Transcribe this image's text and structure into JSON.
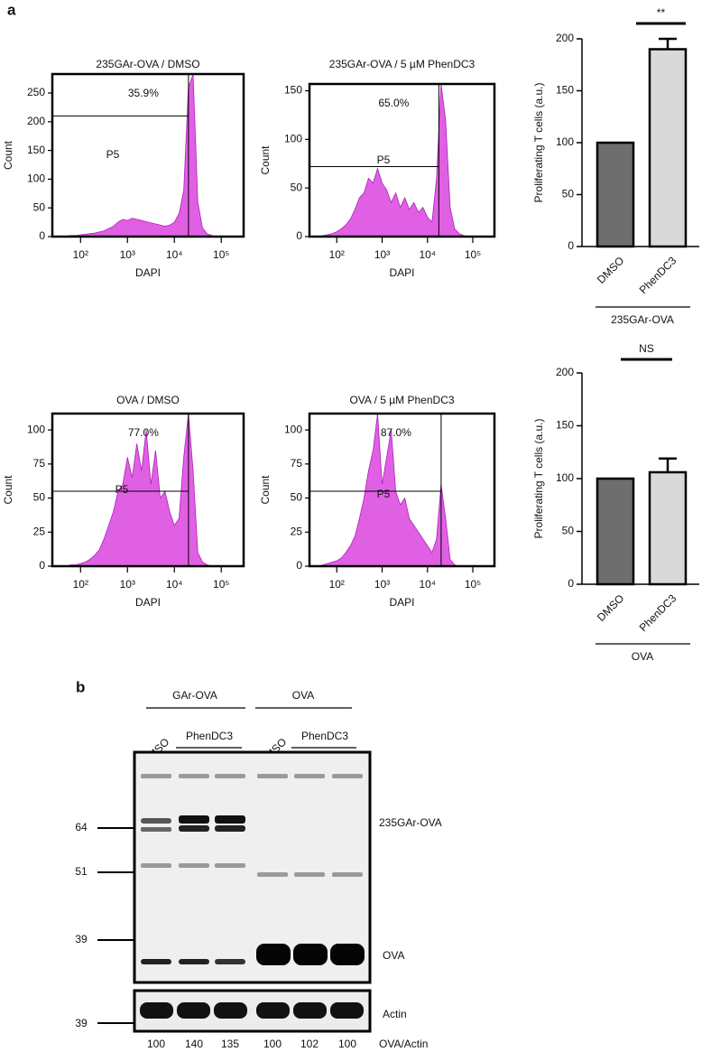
{
  "panel_labels": [
    "a",
    "b"
  ],
  "chart_data": [
    {
      "type": "area",
      "title": "235GAr-OVA / DMSO",
      "xlabel": "DAPI",
      "ylabel": "Count",
      "color": "#e060e4",
      "xscale": "log",
      "x": [
        32,
        40,
        50,
        63,
        79,
        100,
        126,
        158,
        200,
        251,
        316,
        398,
        501,
        631,
        794,
        1000,
        1259,
        1585,
        1995,
        2512,
        3162,
        3981,
        5012,
        6310,
        7943,
        10000,
        12589,
        15849,
        19953,
        25119,
        31623,
        39811,
        50119,
        63096,
        79433,
        100000
      ],
      "values": [
        0,
        0,
        1,
        2,
        2,
        3,
        4,
        5,
        6,
        8,
        10,
        14,
        18,
        25,
        30,
        28,
        32,
        30,
        28,
        26,
        24,
        22,
        20,
        18,
        20,
        25,
        40,
        80,
        260,
        283,
        60,
        15,
        5,
        2,
        0,
        0
      ],
      "xlim": [
        25,
        300000
      ],
      "xticks": [
        {
          "value": 100,
          "label": "10²"
        },
        {
          "value": 1000,
          "label": "10³"
        },
        {
          "value": 10000,
          "label": "10⁴"
        },
        {
          "value": 100000,
          "label": "10⁵"
        }
      ],
      "ylim": [
        0,
        283
      ],
      "yticks": [
        0,
        50,
        100,
        150,
        200,
        250
      ],
      "gate": {
        "x": 20000,
        "y": 210
      },
      "gate_label": "35.9%",
      "region_label": "P5"
    },
    {
      "type": "area",
      "title": "235GAr-OVA / 5 µM PhenDC3",
      "xlabel": "DAPI",
      "ylabel": "Count",
      "color": "#e060e4",
      "xscale": "log",
      "x": [
        32,
        40,
        50,
        63,
        79,
        100,
        126,
        158,
        200,
        251,
        316,
        398,
        501,
        631,
        794,
        1000,
        1259,
        1585,
        1995,
        2512,
        3162,
        3981,
        5012,
        6310,
        7943,
        10000,
        12589,
        15849,
        19953,
        25119,
        31623,
        39811,
        50119,
        63096,
        79433,
        100000
      ],
      "values": [
        0,
        0,
        1,
        2,
        3,
        5,
        8,
        12,
        18,
        28,
        40,
        45,
        60,
        55,
        70,
        55,
        48,
        35,
        45,
        30,
        40,
        28,
        35,
        25,
        30,
        20,
        15,
        60,
        157,
        120,
        30,
        8,
        3,
        1,
        0,
        0
      ],
      "xlim": [
        25,
        300000
      ],
      "xticks": [
        {
          "value": 100,
          "label": "10²"
        },
        {
          "value": 1000,
          "label": "10³"
        },
        {
          "value": 10000,
          "label": "10⁴"
        },
        {
          "value": 100000,
          "label": "10⁵"
        }
      ],
      "ylim": [
        0,
        157
      ],
      "yticks": [
        0,
        50,
        100,
        150
      ],
      "gate": {
        "x": 17800,
        "y": 72
      },
      "gate_label": "65.0%",
      "region_label": "P5"
    },
    {
      "type": "area",
      "title": "OVA / DMSO",
      "xlabel": "DAPI",
      "ylabel": "Count",
      "color": "#e060e4",
      "xscale": "log",
      "x": [
        32,
        40,
        50,
        63,
        79,
        100,
        126,
        158,
        200,
        251,
        316,
        398,
        501,
        631,
        794,
        1000,
        1259,
        1585,
        1995,
        2512,
        3162,
        3981,
        5012,
        6310,
        7943,
        10000,
        12589,
        15849,
        19953,
        25119,
        31623,
        39811,
        50119,
        63096,
        79433,
        100000
      ],
      "values": [
        0,
        0,
        0,
        1,
        1,
        2,
        3,
        5,
        8,
        12,
        20,
        30,
        40,
        55,
        60,
        80,
        65,
        90,
        70,
        100,
        60,
        85,
        50,
        55,
        40,
        30,
        35,
        80,
        112,
        70,
        10,
        3,
        1,
        0,
        0,
        0
      ],
      "xlim": [
        25,
        300000
      ],
      "xticks": [
        {
          "value": 100,
          "label": "10²"
        },
        {
          "value": 1000,
          "label": "10³"
        },
        {
          "value": 10000,
          "label": "10⁴"
        },
        {
          "value": 100000,
          "label": "10⁵"
        }
      ],
      "ylim": [
        0,
        112
      ],
      "yticks": [
        0,
        25,
        50,
        75,
        100
      ],
      "gate": {
        "x": 20000,
        "y": 55
      },
      "gate_label": "77.0%",
      "region_label": "P5"
    },
    {
      "type": "area",
      "title": "OVA / 5 µM PhenDC3",
      "xlabel": "DAPI",
      "ylabel": "Count",
      "color": "#e060e4",
      "xscale": "log",
      "x": [
        32,
        40,
        50,
        63,
        79,
        100,
        126,
        158,
        200,
        251,
        316,
        398,
        501,
        631,
        794,
        1000,
        1259,
        1585,
        1995,
        2512,
        3162,
        3981,
        5012,
        6310,
        7943,
        10000,
        12589,
        15849,
        19953,
        25119,
        31623,
        39811,
        50119,
        63096,
        79433,
        100000
      ],
      "values": [
        0,
        0,
        1,
        2,
        3,
        4,
        6,
        10,
        15,
        22,
        35,
        50,
        70,
        85,
        112,
        60,
        80,
        100,
        55,
        45,
        50,
        35,
        30,
        25,
        20,
        15,
        10,
        20,
        60,
        35,
        5,
        1,
        0,
        0,
        0,
        0
      ],
      "xlim": [
        25,
        300000
      ],
      "xticks": [
        {
          "value": 100,
          "label": "10²"
        },
        {
          "value": 1000,
          "label": "10³"
        },
        {
          "value": 10000,
          "label": "10⁴"
        },
        {
          "value": 100000,
          "label": "10⁵"
        }
      ],
      "ylim": [
        0,
        112
      ],
      "yticks": [
        0,
        25,
        50,
        75,
        100
      ],
      "gate": {
        "x": 20000,
        "y": 55
      },
      "gate_label": "87.0%",
      "region_label": "P5"
    },
    {
      "type": "bar",
      "ylabel": "Proliferating T cells (a.u.)",
      "categories": [
        "DMSO",
        "PhenDC3"
      ],
      "values": [
        100,
        190
      ],
      "errors": [
        null,
        10
      ],
      "colors": [
        "#6e6e6e",
        "#d9d9d9"
      ],
      "ylim": [
        0,
        200
      ],
      "yticks": [
        0,
        50,
        100,
        150,
        200
      ],
      "group_label": "235GAr-OVA",
      "significance": "**"
    },
    {
      "type": "bar",
      "ylabel": "Proliferating T cells (a.u.)",
      "categories": [
        "DMSO",
        "PhenDC3"
      ],
      "values": [
        100,
        106
      ],
      "errors": [
        null,
        13
      ],
      "colors": [
        "#6e6e6e",
        "#d9d9d9"
      ],
      "ylim": [
        0,
        200
      ],
      "yticks": [
        0,
        50,
        100,
        150,
        200
      ],
      "group_label": "OVA",
      "significance": "NS"
    }
  ],
  "blot": {
    "group_labels": [
      "GAr-OVA",
      "OVA"
    ],
    "lane_labels": [
      "DMSO",
      "PhenDC3",
      "DMSO",
      "PhenDC3"
    ],
    "markers": [
      64,
      51,
      39,
      39
    ],
    "band_labels": [
      "235GAr-OVA",
      "OVA",
      "Actin"
    ],
    "ratio_label": "OVA/Actin",
    "ratios": [
      100,
      140,
      135,
      100,
      102,
      100
    ]
  }
}
